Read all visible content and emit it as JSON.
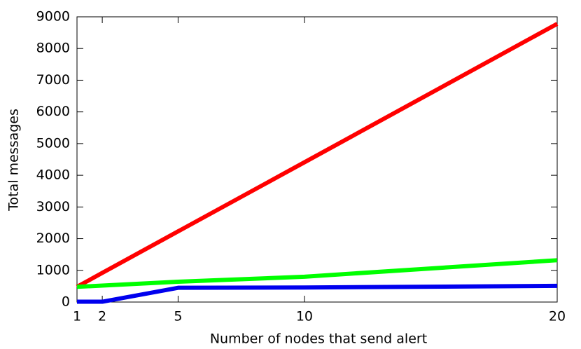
{
  "chart_data": {
    "type": "line",
    "x_label": "Number of nodes that send alert",
    "y_label": "Total messages",
    "x": [
      1,
      2,
      5,
      10,
      20
    ],
    "series": [
      {
        "color": "#ff0000",
        "values": [
          480,
          920,
          2230,
          4410,
          8780
        ]
      },
      {
        "color": "#00ff00",
        "values": [
          480,
          520,
          640,
          800,
          1320
        ]
      },
      {
        "color": "#0000ee",
        "values": [
          10,
          10,
          450,
          460,
          510
        ]
      }
    ],
    "xlim": [
      1,
      20
    ],
    "xticks": [
      1,
      2,
      5,
      10,
      20
    ],
    "ylim": [
      0,
      9000
    ],
    "yticks": [
      0,
      1000,
      2000,
      3000,
      4000,
      5000,
      6000,
      7000,
      8000,
      9000
    ]
  }
}
